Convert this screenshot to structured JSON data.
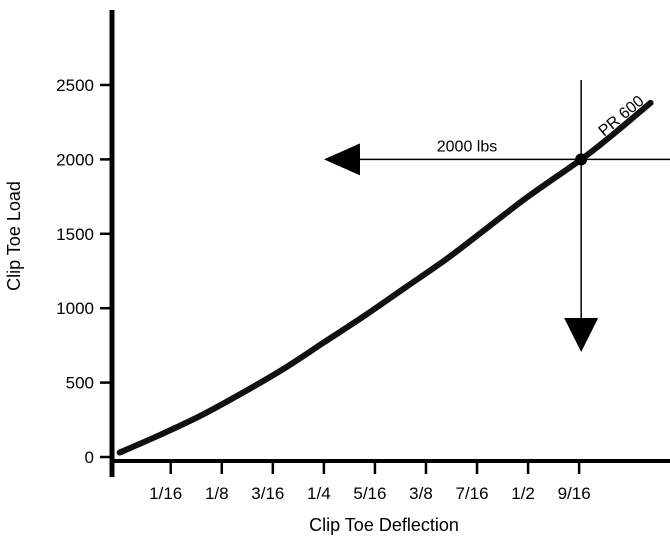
{
  "chart_data": {
    "type": "line",
    "title": "",
    "xlabel": "Clip Toe Deflection",
    "ylabel": "Clip Toe Load",
    "xlim": [
      -0.0094,
      0.65
    ],
    "ylim": [
      0,
      3000
    ],
    "x_ticks": [
      {
        "value": 0.0625,
        "label": "1/16"
      },
      {
        "value": 0.125,
        "label": "1/8"
      },
      {
        "value": 0.1875,
        "label": "3/16"
      },
      {
        "value": 0.25,
        "label": "1/4"
      },
      {
        "value": 0.3125,
        "label": "5/16"
      },
      {
        "value": 0.375,
        "label": "3/8"
      },
      {
        "value": 0.4375,
        "label": "7/16"
      },
      {
        "value": 0.5,
        "label": "1/2"
      },
      {
        "value": 0.5625,
        "label": "9/16"
      }
    ],
    "y_ticks": [
      {
        "value": 0,
        "label": "0"
      },
      {
        "value": 500,
        "label": "500"
      },
      {
        "value": 1000,
        "label": "1000"
      },
      {
        "value": 1500,
        "label": "1500"
      },
      {
        "value": 2000,
        "label": "2000"
      },
      {
        "value": 2500,
        "label": "2500"
      }
    ],
    "series": [
      {
        "name": "PR 600",
        "x": [
          0.0,
          0.05,
          0.1,
          0.15,
          0.2,
          0.25,
          0.3,
          0.35,
          0.4,
          0.45,
          0.5,
          0.565,
          0.6,
          0.65
        ],
        "y": [
          30,
          150,
          280,
          430,
          590,
          770,
          950,
          1140,
          1330,
          1540,
          1750,
          2000,
          2150,
          2380
        ]
      }
    ],
    "annotations": {
      "point": {
        "x": 0.565,
        "y": 2000
      },
      "label": "2000 lbs",
      "series_label": "PR 600"
    },
    "grid": false,
    "legend": "none"
  }
}
